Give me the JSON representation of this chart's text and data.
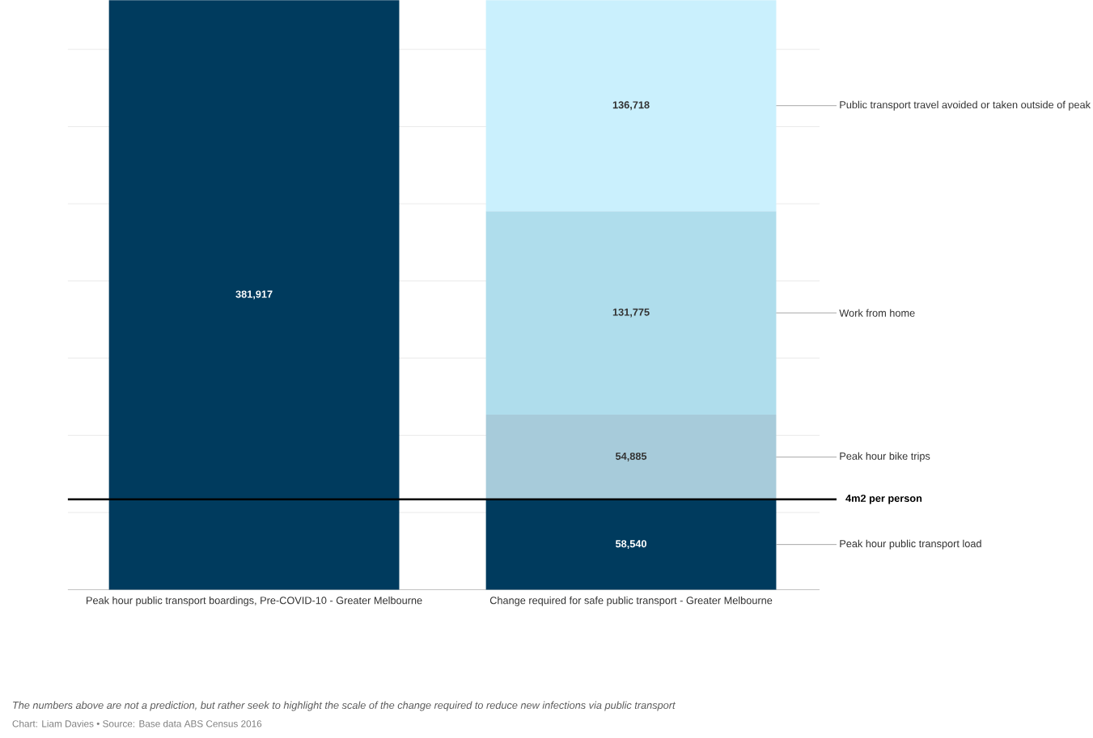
{
  "chart_data": {
    "type": "bar",
    "stacked": true,
    "categories": [
      "Peak hour public transport boardings, Pre-COVID-10 - Greater Melbourne",
      "Change required for safe public transport - Greater Melbourne"
    ],
    "series": [
      {
        "name": "Peak hour public transport load",
        "color": "#003b5e",
        "values": [
          381917,
          58540
        ],
        "value_labels": [
          "381,917",
          "58,540"
        ]
      },
      {
        "name": "Peak hour bike trips",
        "color": "#a7cbda",
        "values": [
          null,
          54885
        ],
        "value_labels": [
          null,
          "54,885"
        ]
      },
      {
        "name": "Work from home",
        "color": "#afddec",
        "values": [
          null,
          131775
        ],
        "value_labels": [
          null,
          "131,775"
        ]
      },
      {
        "name": "Public transport travel avoided or taken outside of peak",
        "color": "#caf0fd",
        "values": [
          null,
          136718
        ],
        "value_labels": [
          null,
          "136,718"
        ]
      }
    ],
    "ylim": [
      0,
      382000
    ],
    "yticks": [
      {
        "value": 0,
        "label": null
      },
      {
        "value": 50000,
        "label": null
      },
      {
        "value": 100000,
        "label": null
      },
      {
        "value": 150000,
        "label": null
      },
      {
        "value": 200000,
        "label": null
      },
      {
        "value": 250000,
        "label": null
      },
      {
        "value": 300000,
        "label": null
      },
      {
        "value": 350000,
        "label": null
      }
    ],
    "grid": "y",
    "tick_labels": "x",
    "ref_lines": [
      {
        "axis": "y",
        "value": 58540,
        "label": "4m2 per person",
        "color": "#000000"
      }
    ],
    "annotations": [
      "The numbers above are not a prediction, but rather seek to highlight the scale of the change required to reduce new infections via public transport",
      "Chart: Liam Davies • Source: Base data ABS Census 2016"
    ]
  }
}
